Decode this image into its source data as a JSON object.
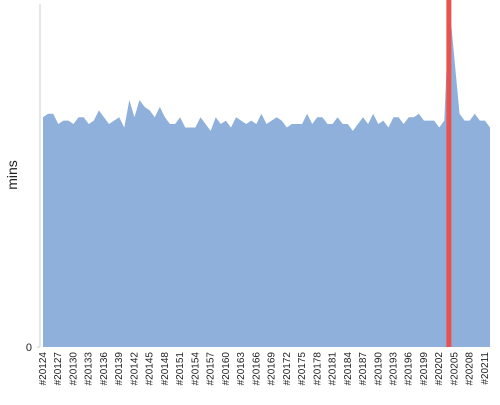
{
  "chart_data": {
    "type": "area",
    "y_label": "mins",
    "categories": [
      "#20124",
      null,
      null,
      "#20127",
      null,
      null,
      "#20130",
      null,
      null,
      "#20133",
      null,
      null,
      "#20136",
      null,
      null,
      "#20139",
      null,
      null,
      "#20142",
      null,
      null,
      "#20145",
      null,
      null,
      "#20148",
      null,
      null,
      "#20151",
      null,
      null,
      "#20154",
      null,
      null,
      "#20157",
      null,
      null,
      "#20160",
      null,
      null,
      "#20163",
      null,
      null,
      "#20166",
      null,
      null,
      "#20169",
      null,
      null,
      "#20172",
      null,
      null,
      "#20175",
      null,
      null,
      "#20178",
      null,
      null,
      "#20181",
      null,
      null,
      "#20184",
      null,
      null,
      "#20187",
      null,
      null,
      "#20190",
      null,
      null,
      "#20193",
      null,
      null,
      "#20196",
      null,
      null,
      "#20199",
      null,
      null,
      "#20202",
      null,
      null,
      "#20205",
      null,
      null,
      "#20208",
      null,
      null,
      "#20211",
      null
    ],
    "values": [
      67,
      68,
      68,
      65,
      66,
      66,
      65,
      67,
      67,
      65,
      66,
      69,
      67,
      65,
      66,
      67,
      64,
      72,
      67,
      72,
      70,
      69,
      67,
      70,
      67,
      65,
      65,
      67,
      64,
      64,
      64,
      67,
      65,
      63,
      67,
      65,
      66,
      64,
      67,
      66,
      65,
      66,
      65,
      68,
      65,
      66,
      67,
      66,
      64,
      65,
      65,
      65,
      68,
      65,
      67,
      67,
      65,
      65,
      67,
      65,
      65,
      63,
      65,
      67,
      65,
      68,
      65,
      66,
      64,
      67,
      67,
      65,
      67,
      67,
      68,
      66,
      66,
      66,
      64,
      66,
      100,
      84,
      68,
      66,
      66,
      68,
      66,
      66,
      64
    ],
    "color": "#8fb0da",
    "highlight_index": 80,
    "highlight_color": "#e8534f",
    "ylim": [
      0,
      100
    ],
    "yticks": [
      0
    ]
  }
}
